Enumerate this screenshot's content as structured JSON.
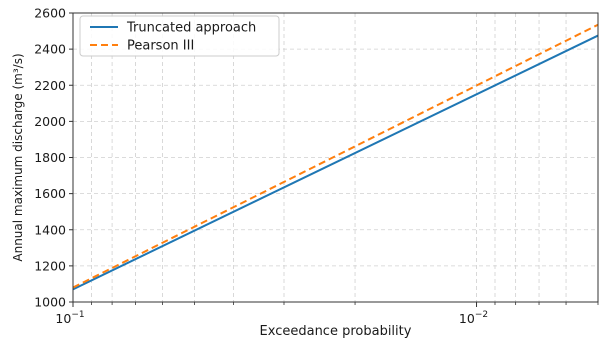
{
  "chart_data": {
    "type": "line",
    "title": "",
    "xlabel": "Exceedance probability",
    "ylabel": "Annual maximum discharge (m³/s)",
    "x_scale": "log",
    "x_reversed": true,
    "xlim": [
      0.1,
      0.005
    ],
    "ylim": [
      1000,
      2600
    ],
    "grid": true,
    "legend_position": "top-left",
    "x_ticks": [
      {
        "value": 0.1,
        "base": "10",
        "exp": "−1"
      },
      {
        "value": 0.01,
        "base": "10",
        "exp": "−2"
      }
    ],
    "y_ticks": [
      1000,
      1200,
      1400,
      1600,
      1800,
      2000,
      2200,
      2400,
      2600
    ],
    "series": [
      {
        "name": "Truncated approach",
        "color": "#1f77b4",
        "dash": "solid",
        "x": [
          0.1,
          0.005
        ],
        "y": [
          1070,
          2475
        ]
      },
      {
        "name": "Pearson III",
        "color": "#ff7f0e",
        "dash": "dashed",
        "x": [
          0.1,
          0.005
        ],
        "y": [
          1080,
          2535
        ]
      }
    ]
  }
}
